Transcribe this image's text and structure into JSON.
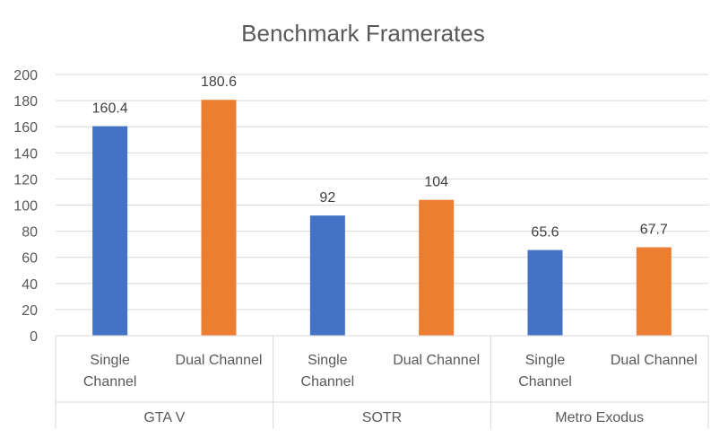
{
  "chart_data": {
    "type": "bar",
    "title": "Benchmark Framerates",
    "ylim": [
      0,
      200
    ],
    "yticks": [
      0,
      20,
      40,
      60,
      80,
      100,
      120,
      140,
      160,
      180,
      200
    ],
    "grid": true,
    "groups": [
      {
        "label": "GTA V",
        "bars": [
          {
            "label": [
              "Single",
              "Channel"
            ],
            "value": 160.4,
            "value_label": "160.4",
            "color": "#4472C4"
          },
          {
            "label": [
              "Dual Channel"
            ],
            "value": 180.6,
            "value_label": "180.6",
            "color": "#ED7D31"
          }
        ]
      },
      {
        "label": "SOTR",
        "bars": [
          {
            "label": [
              "Single",
              "Channel"
            ],
            "value": 92,
            "value_label": "92",
            "color": "#4472C4"
          },
          {
            "label": [
              "Dual Channel"
            ],
            "value": 104,
            "value_label": "104",
            "color": "#ED7D31"
          }
        ]
      },
      {
        "label": "Metro Exodus",
        "bars": [
          {
            "label": [
              "Single",
              "Channel"
            ],
            "value": 65.6,
            "value_label": "65.6",
            "color": "#4472C4"
          },
          {
            "label": [
              "Dual Channel"
            ],
            "value": 67.7,
            "value_label": "67.7",
            "color": "#ED7D31"
          }
        ]
      }
    ]
  }
}
